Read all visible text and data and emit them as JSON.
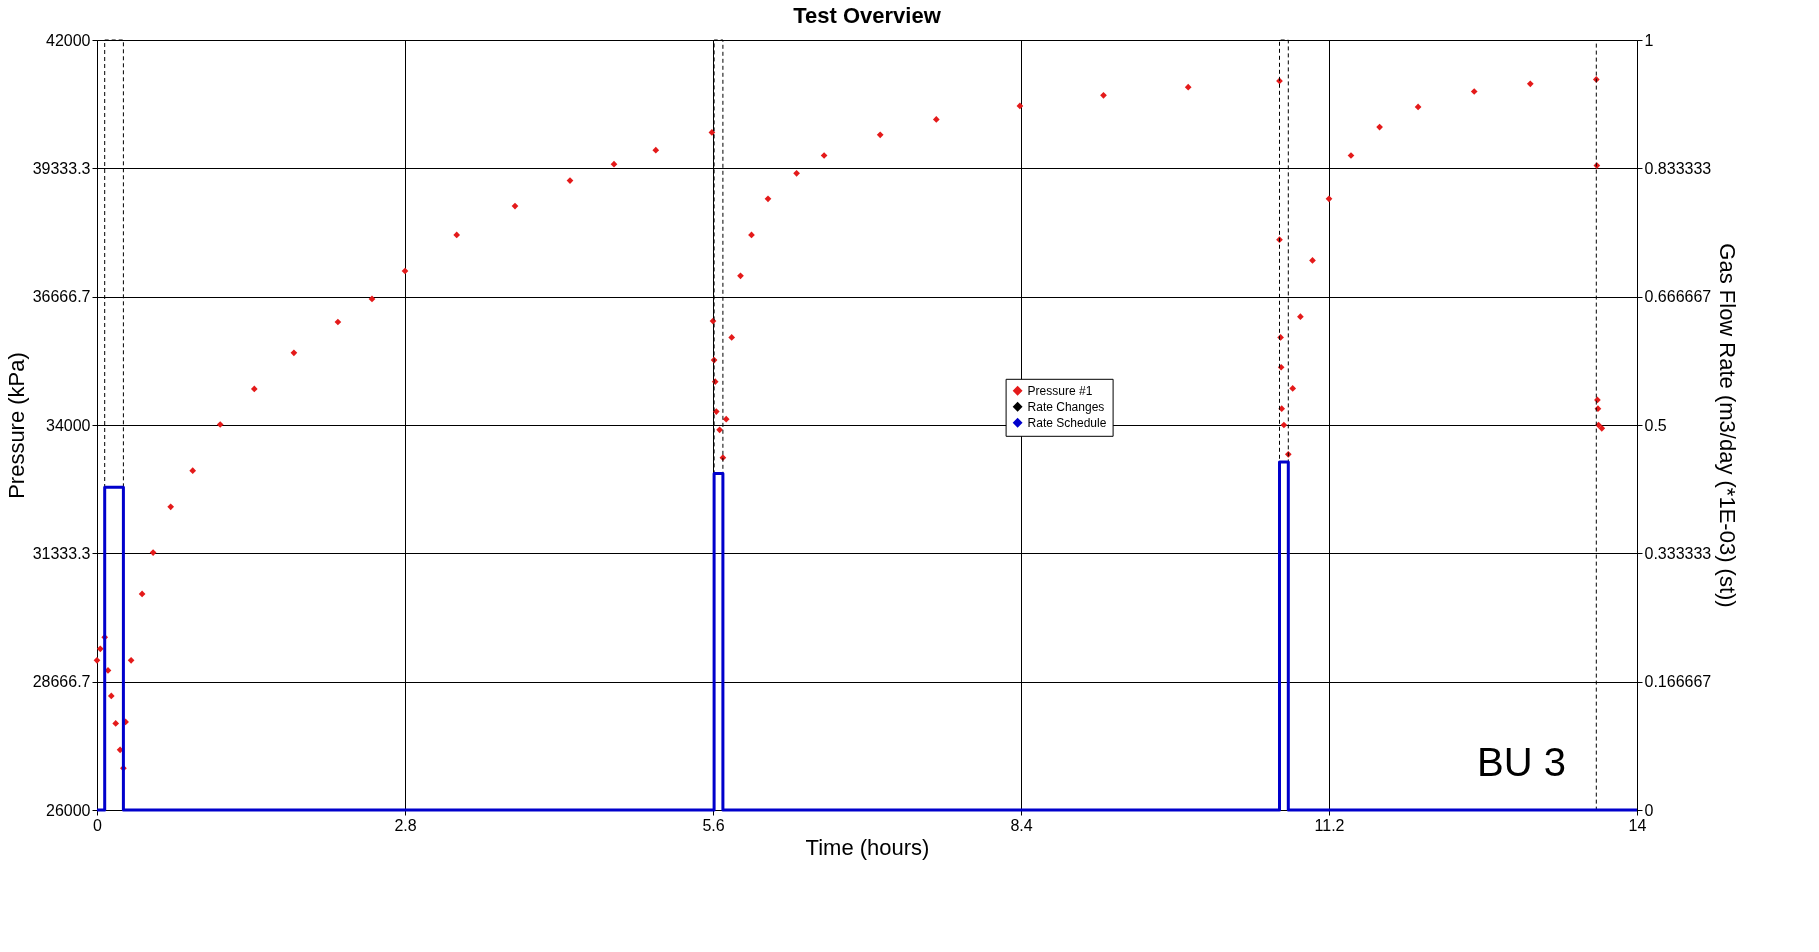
{
  "chart_data": {
    "type": "scatter",
    "title": "Test Overview",
    "xlabel": "Time (hours)",
    "ylabel": "Pressure (kPa)",
    "y2label": "Gas Flow Rate (m3/day (*1E-03) (st))",
    "xlim": [
      0,
      14
    ],
    "xticks": [
      0,
      2.8,
      5.6,
      8.4,
      11.2,
      14
    ],
    "ylim": [
      26000,
      42000
    ],
    "yticks": [
      26000,
      28666.7,
      31333.3,
      34000,
      36666.7,
      39333.3,
      42000
    ],
    "y2lim": [
      0,
      1
    ],
    "y2ticks": [
      0,
      0.166667,
      0.333333,
      0.5,
      0.666667,
      0.833333,
      1
    ],
    "grid": true,
    "legend": "center",
    "annotations": [
      "BU 3"
    ],
    "series": [
      {
        "name": "Pressure #1",
        "marker": "diamond",
        "color": "#e41a1a",
        "x": [
          0,
          0.03,
          0.07,
          0.1,
          0.13,
          0.17,
          0.21,
          0.24,
          0.26,
          0.31,
          0.41,
          0.51,
          0.67,
          0.87,
          1.12,
          1.43,
          1.79,
          2.19,
          2.5,
          2.8,
          3.27,
          3.8,
          4.3,
          4.7,
          5.08,
          5.59,
          5.6,
          5.61,
          5.62,
          5.63,
          5.66,
          5.69,
          5.72,
          5.77,
          5.85,
          5.95,
          6.1,
          6.36,
          6.61,
          7.12,
          7.63,
          8.39,
          9.15,
          9.92,
          10.75,
          10.75,
          10.76,
          10.765,
          10.77,
          10.79,
          10.83,
          10.87,
          10.94,
          11.05,
          11.2,
          11.4,
          11.66,
          12.01,
          12.52,
          13.03,
          13.63,
          13.635,
          13.64,
          13.645,
          13.65,
          13.68
        ],
        "values": [
          29110,
          29350,
          29590,
          28900,
          28370,
          27800,
          27250,
          26870,
          27830,
          29110,
          30490,
          31350,
          32300,
          33050,
          34010,
          34750,
          35500,
          36140,
          36620,
          37200,
          37950,
          38550,
          39080,
          39420,
          39710,
          40080,
          36160,
          35350,
          34900,
          34280,
          33900,
          33320,
          34120,
          35820,
          37100,
          37950,
          38700,
          39230,
          39600,
          40030,
          40350,
          40630,
          40850,
          41020,
          41150,
          37850,
          35820,
          35200,
          34340,
          34000,
          33390,
          34760,
          36250,
          37420,
          38700,
          39600,
          40190,
          40610,
          40930,
          41090,
          41180,
          39390,
          34520,
          34340,
          34000,
          33930
        ]
      },
      {
        "name": "Rate Changes",
        "type": "line",
        "axis": "y2",
        "color": "#000000",
        "line_style": "dashed",
        "x": [
          0.07,
          0.07,
          0.24,
          0.24,
          5.61,
          5.61,
          5.69,
          5.69,
          10.75,
          10.75,
          10.83,
          10.83,
          13.63,
          13.63
        ],
        "values": [
          0,
          1,
          1,
          0,
          0,
          1,
          1,
          0,
          0,
          1,
          1,
          0,
          0,
          1
        ]
      },
      {
        "name": "Rate Schedule",
        "type": "step",
        "axis": "y2",
        "color": "#0000cc",
        "line_style": "solid",
        "x": [
          0,
          0.07,
          0.24,
          5.61,
          5.69,
          10.75,
          10.83,
          14
        ],
        "values": [
          0,
          0.419,
          0,
          0.437,
          0,
          0.452,
          0,
          0
        ]
      }
    ]
  }
}
